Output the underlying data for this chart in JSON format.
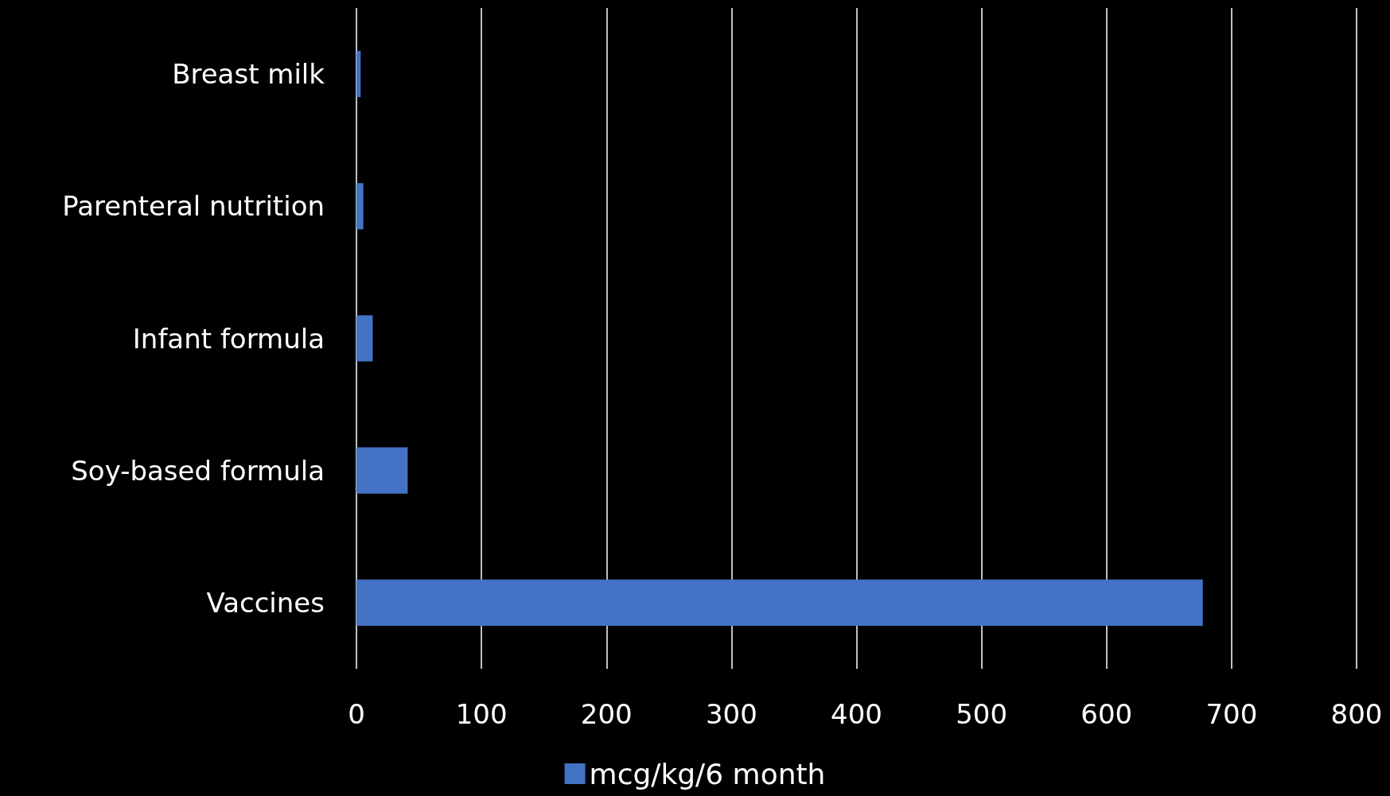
{
  "chart_data": {
    "type": "bar",
    "orientation": "horizontal",
    "categories": [
      "Breast milk",
      "Parenteral nutrition",
      "Infant formula",
      "Soy-based formula",
      "Vaccines"
    ],
    "series": [
      {
        "name": "mcg/kg/6 month",
        "color": "#4472c4",
        "values": [
          3.4,
          5.5,
          13,
          41,
          677
        ]
      }
    ],
    "xlim": [
      0,
      800
    ],
    "xticks": [
      0,
      100,
      200,
      300,
      400,
      500,
      600,
      700,
      800
    ],
    "grid": "x",
    "legend": "bottom"
  }
}
